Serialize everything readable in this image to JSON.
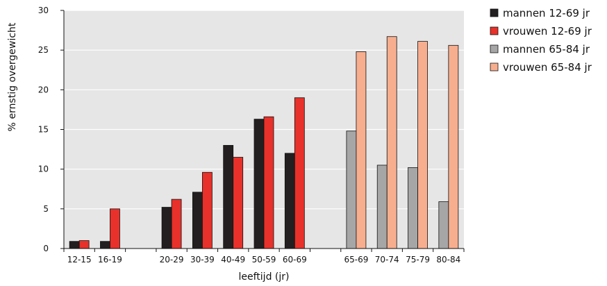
{
  "chart_data": {
    "type": "bar",
    "xlabel": "leeftijd (jr)",
    "ylabel": "% ernstig overgewicht",
    "ylim": [
      0,
      30
    ],
    "yticks": [
      0,
      5,
      10,
      15,
      20,
      25,
      30
    ],
    "grid": true,
    "legend_position": "right",
    "categories": [
      "12-15",
      "16-19",
      "",
      "20-29",
      "30-39",
      "40-49",
      "50-59",
      "60-69",
      "",
      "65-69",
      "70-74",
      "75-79",
      "80-84"
    ],
    "series": [
      {
        "name": "mannen 12-69 jr",
        "color": "#231f20",
        "values": [
          0.9,
          0.9,
          null,
          5.2,
          7.1,
          13.0,
          16.3,
          12.0,
          null,
          null,
          null,
          null,
          null
        ]
      },
      {
        "name": "vrouwen 12-69 jr",
        "color": "#e8312a",
        "values": [
          1.0,
          5.0,
          null,
          6.2,
          9.6,
          11.5,
          16.6,
          19.0,
          null,
          null,
          null,
          null,
          null
        ]
      },
      {
        "name": "mannen 65-84 jr",
        "color": "#a6a6a6",
        "values": [
          null,
          null,
          null,
          null,
          null,
          null,
          null,
          null,
          null,
          14.8,
          10.5,
          10.2,
          5.9
        ]
      },
      {
        "name": "vrouwen 65-84 jr",
        "color": "#f7ae8f",
        "values": [
          null,
          null,
          null,
          null,
          null,
          null,
          null,
          null,
          null,
          24.8,
          26.7,
          26.1,
          25.6
        ]
      }
    ]
  }
}
